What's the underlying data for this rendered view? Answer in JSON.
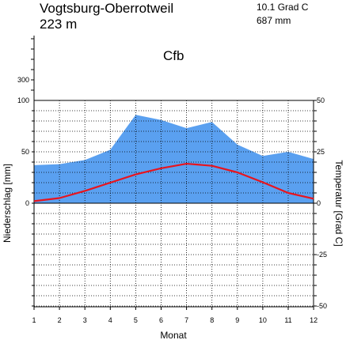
{
  "header": {
    "station": "Vogtsburg-Oberrotweil",
    "elevation": "223 m",
    "mean_temperature": "10.1 Grad C",
    "annual_precipitation": "687 mm",
    "climate_class": "Cfb"
  },
  "chart_data": {
    "type": "area",
    "categories": [
      "1",
      "2",
      "3",
      "4",
      "5",
      "6",
      "7",
      "8",
      "9",
      "10",
      "11",
      "12"
    ],
    "xlabel": "Monat",
    "ylabel_left": "Niederschlag [mm]",
    "ylabel_right": "Temperatur [Grad C]",
    "precip_ylim": [
      -100,
      100
    ],
    "precip_ticks": [
      {
        "value": 100,
        "label": "100"
      },
      {
        "value": 50,
        "label": "50"
      },
      {
        "value": 0,
        "label": "0"
      }
    ],
    "precip_upper_ticks": [
      {
        "value": 300,
        "label": "300"
      }
    ],
    "temp_ylim": [
      -50,
      50
    ],
    "temp_ticks": [
      {
        "value": 50,
        "label": "50"
      },
      {
        "value": 25,
        "label": "25"
      },
      {
        "value": 0,
        "label": "0"
      },
      {
        "value": -25,
        "label": "-25"
      },
      {
        "value": -50,
        "label": "-50"
      }
    ],
    "grid": true,
    "series": [
      {
        "values": [
          37,
          38,
          42,
          52,
          86,
          81,
          73,
          79,
          57,
          46,
          50,
          43
        ],
        "color": "#5aa0f0"
      },
      {
        "values": [
          1.0,
          2.5,
          6.0,
          10.0,
          14.0,
          17.0,
          19.2,
          18.2,
          15.0,
          10.2,
          5.0,
          2.2
        ],
        "color": "#e8141e"
      }
    ]
  }
}
